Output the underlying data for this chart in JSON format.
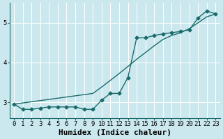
{
  "xlabel": "Humidex (Indice chaleur)",
  "ylabel": "",
  "background_color": "#cce8ef",
  "grid_color": "#ffffff",
  "line_color": "#1a6b6b",
  "x_data": [
    0,
    1,
    2,
    3,
    4,
    5,
    6,
    7,
    8,
    9,
    10,
    11,
    12,
    13,
    14,
    15,
    16,
    17,
    18,
    19,
    20,
    21,
    22,
    23
  ],
  "y_jagged": [
    2.95,
    2.82,
    2.82,
    2.85,
    2.88,
    2.88,
    2.88,
    2.88,
    2.82,
    2.82,
    3.05,
    3.22,
    3.22,
    3.62,
    4.62,
    4.62,
    4.68,
    4.72,
    4.75,
    4.78,
    4.82,
    5.12,
    5.3,
    5.22
  ],
  "y_smooth": [
    2.95,
    2.98,
    3.01,
    3.04,
    3.07,
    3.1,
    3.13,
    3.16,
    3.19,
    3.22,
    3.38,
    3.55,
    3.72,
    3.9,
    4.08,
    4.25,
    4.42,
    4.58,
    4.68,
    4.75,
    4.85,
    5.0,
    5.15,
    5.22
  ],
  "ylim": [
    2.6,
    5.5
  ],
  "xlim": [
    -0.5,
    23.5
  ],
  "yticks": [
    3,
    4,
    5
  ],
  "xticks": [
    0,
    1,
    2,
    3,
    4,
    5,
    6,
    7,
    8,
    9,
    10,
    11,
    12,
    13,
    14,
    15,
    16,
    17,
    18,
    19,
    20,
    21,
    22,
    23
  ],
  "marker": "D",
  "markersize": 2.5,
  "linewidth": 1.0,
  "xlabel_fontsize": 8,
  "tick_fontsize": 6.5,
  "figsize": [
    3.2,
    2.0
  ],
  "dpi": 100
}
